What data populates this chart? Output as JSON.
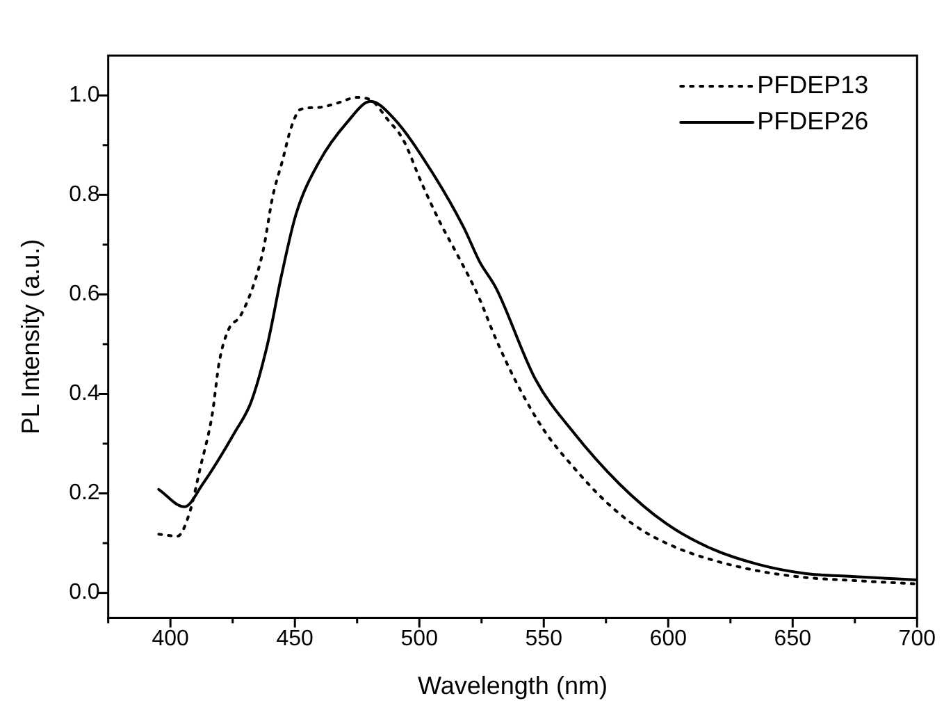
{
  "chart_data": {
    "type": "line",
    "xlabel": "Wavelength (nm)",
    "ylabel": "PL Intensity (a.u.)",
    "xlim": [
      375,
      700
    ],
    "xticks": [
      {
        "value": 375,
        "label": null
      },
      400,
      {
        "value": 425,
        "label": null
      },
      450,
      {
        "value": 475,
        "label": null
      },
      500,
      {
        "value": 525,
        "label": null
      },
      550,
      {
        "value": 575,
        "label": null
      },
      600,
      {
        "value": 625,
        "label": null
      },
      650,
      {
        "value": 675,
        "label": null
      },
      700
    ],
    "ylim": [
      -0.05,
      1.08
    ],
    "yticks": [
      {
        "value": 0,
        "label": "0.0"
      },
      {
        "value": 0.1,
        "label": null
      },
      {
        "value": 0.2,
        "label": "0.2"
      },
      {
        "value": 0.3,
        "label": null
      },
      {
        "value": 0.4,
        "label": "0.4"
      },
      {
        "value": 0.5,
        "label": null
      },
      {
        "value": 0.6,
        "label": "0.6"
      },
      {
        "value": 0.7,
        "label": null
      },
      {
        "value": 0.8,
        "label": "0.8"
      },
      {
        "value": 0.9,
        "label": null
      },
      {
        "value": 1,
        "label": "1.0"
      }
    ],
    "grid": false,
    "legend": "top right",
    "marker": "none",
    "series": [
      {
        "name": "PFDEP13",
        "color": "#000000",
        "line_style": "dotted",
        "x": [
          395.3,
          402.8,
          407.5,
          412.1,
          416.8,
          419.6,
          423.4,
          428,
          433.6,
          437.4,
          441.1,
          444.9,
          448.6,
          452.3,
          459.8,
          467.3,
          474.8,
          481.3,
          486.9,
          493.5,
          501,
          508.4,
          515.9,
          523.4,
          530.8,
          539.3,
          550.5,
          561.7,
          574.8,
          587.9,
          602.8,
          617.8,
          636.4,
          655,
          673.8,
          700
        ],
        "values": [
          0.118,
          0.114,
          0.158,
          0.254,
          0.359,
          0.464,
          0.53,
          0.556,
          0.622,
          0.692,
          0.797,
          0.867,
          0.937,
          0.972,
          0.976,
          0.985,
          0.996,
          0.988,
          0.954,
          0.911,
          0.823,
          0.744,
          0.674,
          0.6,
          0.51,
          0.42,
          0.324,
          0.254,
          0.184,
          0.131,
          0.092,
          0.066,
          0.044,
          0.031,
          0.025,
          0.018
        ]
      },
      {
        "name": "PFDEP26",
        "color": "#000000",
        "line_style": "solid",
        "x": [
          395.3,
          405.6,
          413,
          426,
          432.5,
          439,
          444.7,
          450.5,
          459.8,
          471,
          480.4,
          489.7,
          504.7,
          517.8,
          524.3,
          530.8,
          546.7,
          561.7,
          580.4,
          599,
          617.8,
          636.4,
          655,
          673.8,
          700
        ],
        "values": [
          0.208,
          0.173,
          0.219,
          0.324,
          0.385,
          0.5,
          0.64,
          0.762,
          0.867,
          0.946,
          0.988,
          0.954,
          0.849,
          0.735,
          0.665,
          0.613,
          0.429,
          0.324,
          0.219,
          0.14,
          0.088,
          0.057,
          0.039,
          0.033,
          0.026
        ]
      }
    ]
  }
}
